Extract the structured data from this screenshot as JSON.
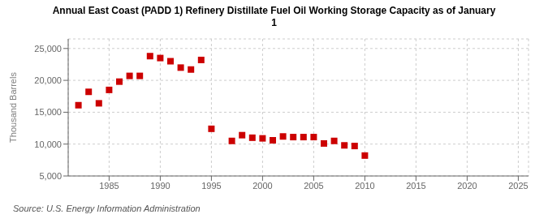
{
  "chart_data": {
    "type": "scatter",
    "title": "Annual East Coast (PADD 1) Refinery Distillate Fuel Oil Working Storage Capacity as of January\n1",
    "ylabel": "Thousand Barrels",
    "source": "Source: U.S. Energy Information Administration",
    "x": [
      1982,
      1983,
      1984,
      1985,
      1986,
      1987,
      1988,
      1989,
      1990,
      1991,
      1992,
      1993,
      1994,
      1995,
      1997,
      1998,
      1999,
      2000,
      2001,
      2002,
      2003,
      2004,
      2005,
      2006,
      2007,
      2008,
      2009,
      2010
    ],
    "values": [
      16100,
      18200,
      16400,
      18500,
      19800,
      20700,
      20700,
      23800,
      23500,
      23000,
      22000,
      21700,
      23200,
      12400,
      10500,
      11400,
      11000,
      10900,
      10600,
      11200,
      11100,
      11100,
      11100,
      10100,
      10500,
      9800,
      9700,
      8200
    ],
    "color": "#cc0000",
    "marker": "square",
    "xlim": [
      1981,
      2026
    ],
    "xticks": [
      1985,
      1990,
      1995,
      2000,
      2005,
      2010,
      2015,
      2020,
      2025
    ],
    "ylim": [
      5000,
      26500
    ],
    "yticks": [
      {
        "value": 5000,
        "label": "5,000"
      },
      {
        "value": 10000,
        "label": "10,000"
      },
      {
        "value": 15000,
        "label": "15,000"
      },
      {
        "value": 20000,
        "label": "20,000"
      },
      {
        "value": 25000,
        "label": "25,000"
      }
    ],
    "grid": true
  }
}
